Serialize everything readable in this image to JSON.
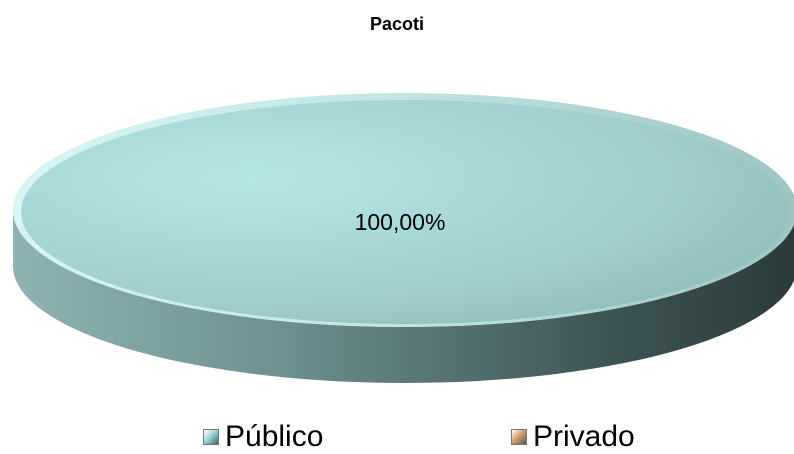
{
  "chart_data": {
    "type": "pie",
    "title": "Pacoti",
    "categories": [
      "Público",
      "Privado"
    ],
    "values": [
      100.0,
      0.0
    ],
    "data_labels": [
      "100,00%"
    ],
    "legend_position": "bottom",
    "colors": [
      "#9fd7d7",
      "#d9a066"
    ]
  },
  "legend": {
    "items": [
      {
        "label": "Público",
        "color": "#9fd7d7"
      },
      {
        "label": "Privado",
        "color": "#d9a066"
      }
    ]
  }
}
